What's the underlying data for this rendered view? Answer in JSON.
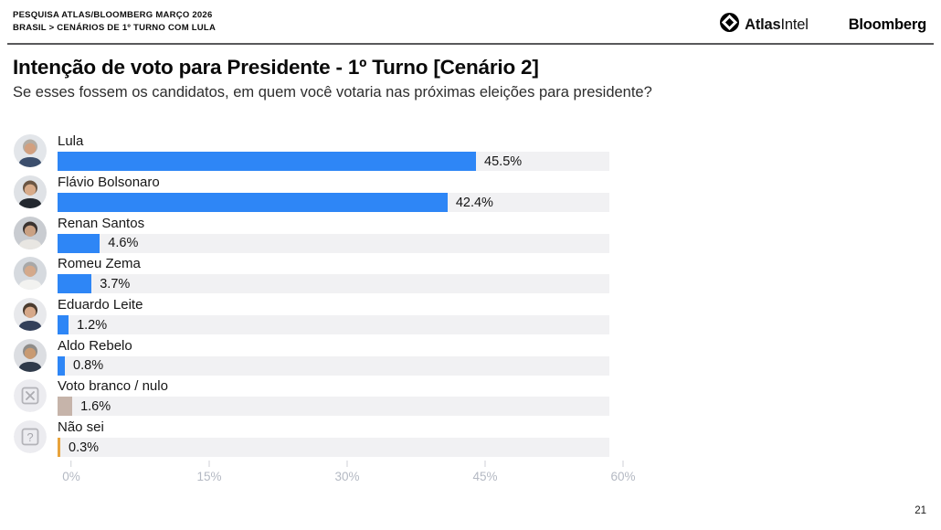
{
  "header": {
    "line1": "PESQUISA ATLAS/BLOOMBERG MARÇO 2026",
    "line2": "BRASIL > CENÁRIOS DE 1º TURNO COM LULA",
    "logos": {
      "atlas": "Atlas",
      "intel": "Intel",
      "bloomberg": "Bloomberg"
    }
  },
  "title": "Intenção de voto para Presidente - 1º Turno [Cenário 2]",
  "subtitle": "Se esses fossem os candidatos, em quem você votaria nas próximas eleições para presidente?",
  "page_number": "21",
  "chart_data": {
    "type": "bar",
    "orientation": "horizontal",
    "xlim": [
      0,
      60
    ],
    "x_ticks": [
      "0%",
      "15%",
      "30%",
      "45%",
      "60%"
    ],
    "x_tick_values": [
      0,
      15,
      30,
      45,
      60
    ],
    "track_color": "#f1f1f3",
    "accent_blue": "#2e86f6",
    "rows": [
      {
        "name": "Lula",
        "value": 45.5,
        "label": "45.5%",
        "color": "#2e86f6",
        "avatar": "photo-lula"
      },
      {
        "name": "Flávio Bolsonaro",
        "value": 42.4,
        "label": "42.4%",
        "color": "#2e86f6",
        "avatar": "photo-flavio-bolsonaro"
      },
      {
        "name": "Renan Santos",
        "value": 4.6,
        "label": "4.6%",
        "color": "#2e86f6",
        "avatar": "photo-renan-santos"
      },
      {
        "name": "Romeu Zema",
        "value": 3.7,
        "label": "3.7%",
        "color": "#2e86f6",
        "avatar": "photo-romeu-zema"
      },
      {
        "name": "Eduardo Leite",
        "value": 1.2,
        "label": "1.2%",
        "color": "#2e86f6",
        "avatar": "photo-eduardo-leite"
      },
      {
        "name": "Aldo Rebelo",
        "value": 0.8,
        "label": "0.8%",
        "color": "#2e86f6",
        "avatar": "photo-aldo-rebelo"
      },
      {
        "name": "Voto branco / nulo",
        "value": 1.6,
        "label": "1.6%",
        "color": "#c6b4aa",
        "avatar": "x-box-icon"
      },
      {
        "name": "Não sei",
        "value": 0.3,
        "label": "0.3%",
        "color": "#e8a33c",
        "avatar": "question-box-icon"
      }
    ]
  }
}
